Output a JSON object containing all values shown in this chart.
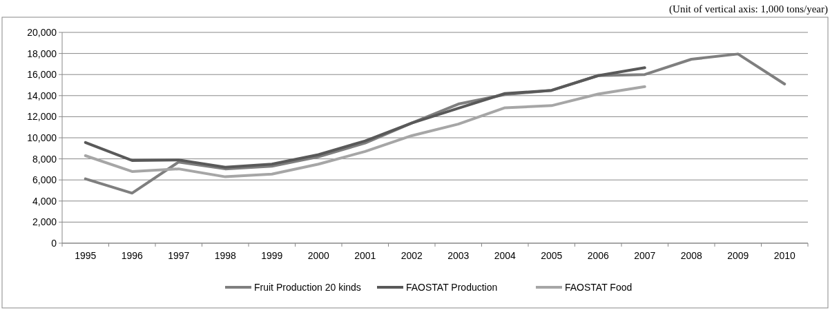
{
  "chart_data": {
    "type": "line",
    "annotations": [
      "(Unit of vertical axis: 1,000 tons/year)"
    ],
    "categories": [
      "1995",
      "1996",
      "1997",
      "1998",
      "1999",
      "2000",
      "2001",
      "2002",
      "2003",
      "2004",
      "2005",
      "2006",
      "2007",
      "2008",
      "2009",
      "2010"
    ],
    "series": [
      {
        "name": "Fruit Production 20 kinds",
        "color": "#7f7f7f",
        "values": [
          6100,
          4750,
          7700,
          7050,
          7300,
          8200,
          9500,
          11400,
          13200,
          14100,
          14500,
          15900,
          16000,
          17450,
          17950,
          15100
        ]
      },
      {
        "name": "FAOSTAT Production",
        "color": "#595959",
        "values": [
          9550,
          7850,
          7900,
          7200,
          7500,
          8400,
          9700,
          11400,
          12800,
          14200,
          14500,
          15900,
          16650,
          null,
          null,
          null
        ]
      },
      {
        "name": "FAOSTAT Food",
        "color": "#a6a6a6",
        "values": [
          8300,
          6800,
          7050,
          6300,
          6550,
          7500,
          8700,
          10200,
          11300,
          12850,
          13050,
          14150,
          14850,
          null,
          null,
          null
        ]
      }
    ],
    "ylim": [
      0,
      20000
    ],
    "yticks": [
      {
        "value": 0,
        "label": "0"
      },
      {
        "value": 2000,
        "label": "2,000"
      },
      {
        "value": 4000,
        "label": "4,000"
      },
      {
        "value": 6000,
        "label": "6,000"
      },
      {
        "value": 8000,
        "label": "8,000"
      },
      {
        "value": 10000,
        "label": "10,000"
      },
      {
        "value": 12000,
        "label": "12,000"
      },
      {
        "value": 14000,
        "label": "14,000"
      },
      {
        "value": 16000,
        "label": "16,000"
      },
      {
        "value": 18000,
        "label": "18,000"
      },
      {
        "value": 20000,
        "label": "20,000"
      }
    ],
    "grid": "y",
    "legend": "bottom",
    "marker": "none",
    "line_style": "solid"
  }
}
